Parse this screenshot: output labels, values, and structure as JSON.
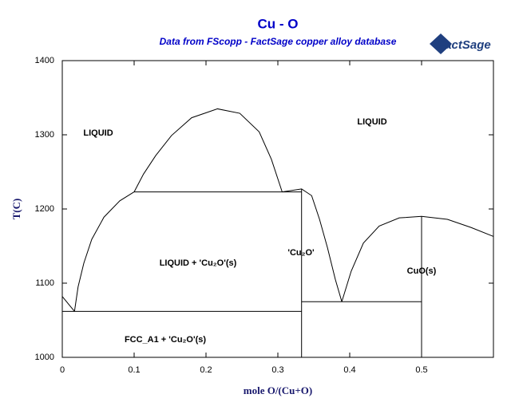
{
  "chart_data": {
    "type": "line",
    "title": "Cu - O",
    "subtitle": "Data from FScopp - FactSage copper alloy database",
    "logo": "FactSage",
    "x_label": "mole O/(Cu+O)",
    "y_label": "T(C)",
    "xlim": [
      0,
      0.6
    ],
    "ylim": [
      1000,
      1400
    ],
    "xticks": [
      0,
      0.1,
      0.2,
      0.3,
      0.4,
      0.5
    ],
    "yticks": [
      1000,
      1100,
      1200,
      1300,
      1400
    ],
    "color": "#000000",
    "series": [
      {
        "x": [
          0,
          0.017
        ],
        "values": [
          1082,
          1062
        ]
      },
      {
        "x": [
          0.017,
          0.022,
          0.03,
          0.041,
          0.058,
          0.08,
          0.1
        ],
        "values": [
          1062,
          1095,
          1127,
          1159,
          1189,
          1211,
          1223
        ]
      },
      {
        "x": [
          0.1,
          0.113,
          0.13,
          0.152,
          0.18,
          0.216,
          0.247,
          0.274,
          0.291,
          0.306
        ],
        "values": [
          1223,
          1247,
          1272,
          1299,
          1323,
          1335,
          1329,
          1304,
          1267,
          1223
        ]
      },
      {
        "x": [
          0.1,
          0.333
        ],
        "values": [
          1223,
          1223
        ]
      },
      {
        "x": [
          0.306,
          0.333,
          0.347,
          0.358,
          0.369,
          0.38,
          0.389
        ],
        "values": [
          1223,
          1227,
          1218,
          1186,
          1148,
          1105,
          1075
        ]
      },
      {
        "x": [
          0.389,
          0.402,
          0.419,
          0.441,
          0.469,
          0.5,
          0.536,
          0.569,
          0.6
        ],
        "values": [
          1075,
          1116,
          1154,
          1177,
          1188,
          1190,
          1186,
          1175,
          1163
        ]
      },
      {
        "x": [
          0,
          0.333
        ],
        "values": [
          1062,
          1062
        ]
      },
      {
        "x": [
          0.333,
          0.5
        ],
        "values": [
          1075,
          1075
        ]
      },
      {
        "x": [
          0.333,
          0.333
        ],
        "values": [
          1000,
          1227
        ]
      },
      {
        "x": [
          0.5,
          0.5
        ],
        "values": [
          1000,
          1190
        ]
      }
    ],
    "annotations": [
      "LIQUID",
      "LIQUID",
      "LIQUID + 'Cu₂O'(s)",
      "'Cu₂O'",
      "CuO(s)",
      "FCC_A1 + 'Cu₂O'(s)"
    ]
  }
}
